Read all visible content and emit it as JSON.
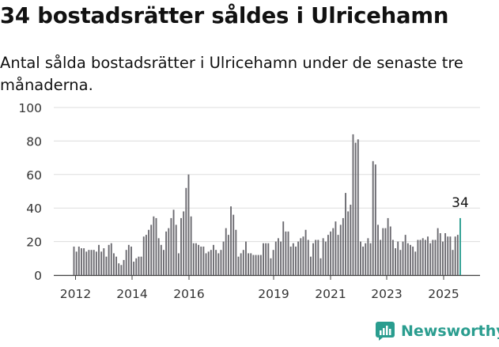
{
  "title": "34 bostadsrätter såldes i Ulricehamn",
  "subtitle": "Antal sålda bostadsrätter i Ulricehamn under de senaste tre månaderna.",
  "brand": "Newsworthy",
  "colors": {
    "bar": "#6b6a70",
    "highlight": "#2a9d8f",
    "grid": "#dddddd",
    "axis": "#444444",
    "brand": "#2a9d8f"
  },
  "chart_data": {
    "type": "bar",
    "title": "",
    "xlabel": "",
    "ylabel": "",
    "ylim": [
      0,
      100
    ],
    "yticks": [
      0,
      20,
      40,
      60,
      80,
      100
    ],
    "x_tick_labels": [
      "2012",
      "2014",
      "2016",
      "2019",
      "2021",
      "2023",
      "2025"
    ],
    "grid": true,
    "annotation": {
      "label": "34",
      "value": 34,
      "target": "last bar"
    },
    "series": [
      {
        "values": [
          17,
          14,
          17,
          16,
          16,
          14,
          15,
          15,
          15,
          14,
          18,
          14,
          16,
          11,
          18,
          19,
          13,
          11,
          7,
          6,
          9,
          15,
          18,
          17,
          8,
          10,
          11,
          11,
          23,
          24,
          27,
          30,
          35,
          34,
          22,
          18,
          15,
          26,
          28,
          34,
          39,
          30,
          13,
          34,
          38,
          52,
          60,
          35,
          19,
          19,
          18,
          17,
          17,
          13,
          14,
          15,
          18,
          15,
          13,
          15,
          20,
          28,
          24,
          41,
          36,
          27,
          11,
          13,
          15,
          20,
          13,
          13,
          12,
          12,
          12,
          12,
          19,
          19,
          19,
          10,
          15,
          20,
          22,
          20,
          32,
          26,
          26,
          17,
          19,
          17,
          20,
          22,
          23,
          27,
          21,
          11,
          19,
          21,
          21,
          10,
          22,
          20,
          24,
          26,
          28,
          32,
          24,
          30,
          34,
          49,
          38,
          42,
          84,
          79,
          81,
          20,
          17,
          19,
          22,
          19,
          68,
          66,
          30,
          21,
          28,
          28,
          34,
          29,
          21,
          16,
          20,
          15,
          20,
          24,
          19,
          18,
          17,
          14,
          21,
          21,
          22,
          21,
          23,
          19,
          21,
          21,
          28,
          25,
          20,
          25,
          23,
          23,
          15,
          23,
          24,
          34
        ]
      }
    ]
  }
}
